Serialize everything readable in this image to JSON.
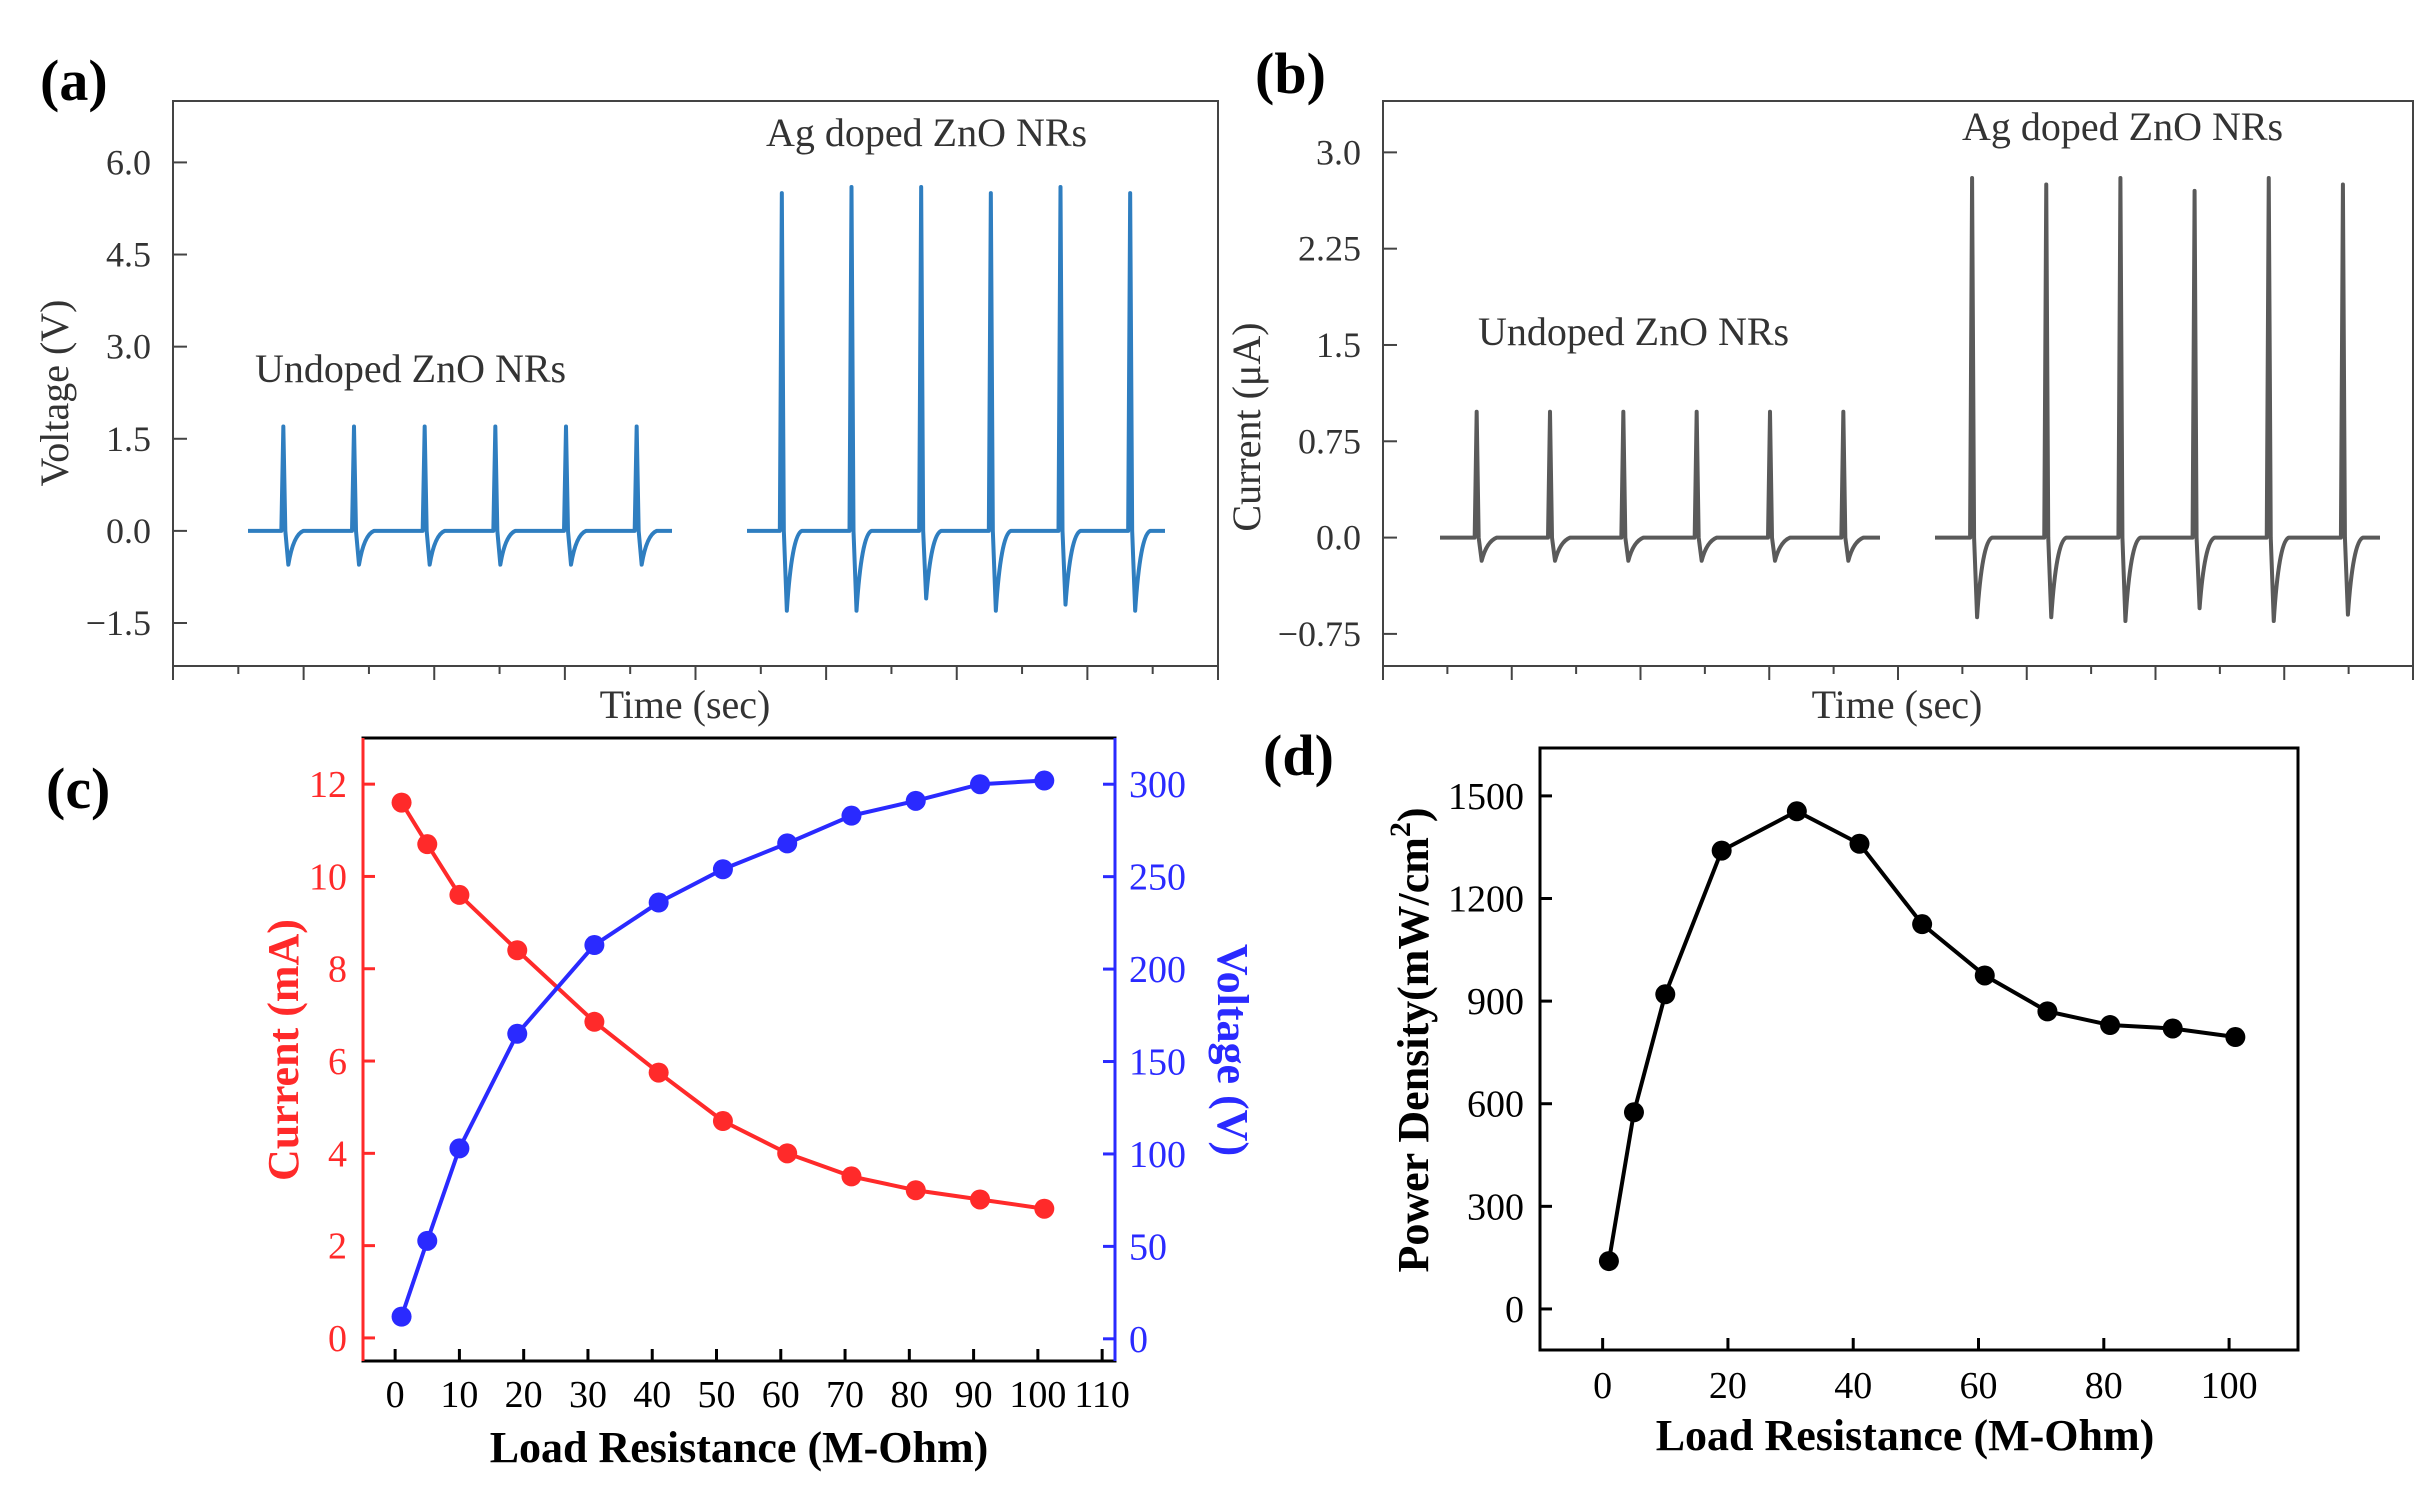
{
  "colors": {
    "panel_a_trace": "#2f7ec0",
    "panel_b_trace": "#5a5a5a",
    "current_series": "#ff2a2a",
    "voltage_series": "#2a2aff",
    "power_series": "#000000",
    "frame": "#444444"
  },
  "chart_data": [
    {
      "panel": "(a)",
      "type": "line",
      "xlabel": "Time (sec)",
      "ylabel": "Voltage (V)",
      "yticks": [
        "6.0",
        "4.5",
        "3.0",
        "1.5",
        "0.0",
        "−1.5"
      ],
      "ylim": [
        -2.2,
        7.0
      ],
      "x_tick_labels": "none",
      "annotations": [
        "Undoped ZnO NRs",
        "Ag doped ZnO NRs"
      ],
      "series": [
        {
          "peaks_positive": [
            1.7,
            1.7,
            1.7,
            1.7,
            1.7,
            1.7
          ],
          "peaks_negative": [
            -0.55,
            -0.55,
            -0.55,
            -0.55,
            -0.55,
            -0.55
          ]
        },
        {
          "peaks_positive": [
            5.5,
            5.6,
            5.6,
            5.5,
            5.6,
            5.5
          ],
          "peaks_negative": [
            -1.3,
            -1.3,
            -1.1,
            -1.3,
            -1.2,
            -1.3
          ]
        }
      ]
    },
    {
      "panel": "(b)",
      "type": "line",
      "xlabel": "Time (sec)",
      "ylabel": "Current (μA)",
      "yticks": [
        "3.0",
        "2.25",
        "1.5",
        "0.75",
        "0.0",
        "−0.75"
      ],
      "ylim": [
        -1.0,
        3.4
      ],
      "x_tick_labels": "none",
      "annotations": [
        "Undoped ZnO NRs",
        "Ag doped ZnO NRs"
      ],
      "series": [
        {
          "peaks_positive": [
            0.98,
            0.98,
            0.98,
            0.98,
            0.98,
            0.98
          ],
          "peaks_negative": [
            -0.18,
            -0.18,
            -0.18,
            -0.18,
            -0.18,
            -0.18
          ]
        },
        {
          "peaks_positive": [
            2.8,
            2.75,
            2.8,
            2.7,
            2.8,
            2.75
          ],
          "peaks_negative": [
            -0.62,
            -0.62,
            -0.65,
            -0.55,
            -0.65,
            -0.6
          ]
        }
      ]
    },
    {
      "panel": "(c)",
      "type": "line",
      "xlabel": "Load Resistance (M-Ohm)",
      "ylabel": "Current (mA)",
      "ylabel_right": "Voltage (V)",
      "xticks": [
        0,
        10,
        20,
        30,
        40,
        50,
        60,
        70,
        80,
        90,
        100,
        110
      ],
      "yticks_left": [
        0,
        2,
        4,
        6,
        8,
        10,
        12
      ],
      "yticks_right": [
        0,
        50,
        100,
        150,
        200,
        250,
        300
      ],
      "xlim": [
        -5,
        112
      ],
      "ylim": [
        -0.5,
        13.0
      ],
      "ylim_right": [
        -12,
        325
      ],
      "x": [
        1,
        5,
        10,
        19,
        31,
        41,
        51,
        61,
        71,
        81,
        91,
        101
      ],
      "series": [
        {
          "axis": "left",
          "values": [
            11.6,
            10.7,
            9.6,
            8.4,
            6.85,
            5.75,
            4.7,
            4.0,
            3.5,
            3.2,
            3.0,
            2.8
          ]
        },
        {
          "axis": "right",
          "values": [
            12,
            53,
            103,
            165,
            213,
            236,
            254,
            268,
            283,
            291,
            300,
            302
          ]
        }
      ]
    },
    {
      "panel": "(d)",
      "type": "line",
      "xlabel": "Load Resistance (M-Ohm)",
      "ylabel": "Power Density(mW/cm",
      "ylabel_sup": "2",
      "ylabel_end": ")",
      "xticks": [
        0,
        20,
        40,
        60,
        80,
        100
      ],
      "yticks": [
        0,
        300,
        600,
        900,
        1200,
        1500
      ],
      "xlim": [
        -10,
        111
      ],
      "ylim": [
        -120,
        1640
      ],
      "x": [
        1,
        5,
        10,
        19,
        31,
        41,
        51,
        61,
        71,
        81,
        91,
        101
      ],
      "series": [
        {
          "values": [
            140,
            575,
            920,
            1340,
            1455,
            1360,
            1125,
            975,
            870,
            830,
            820,
            795
          ]
        }
      ]
    }
  ]
}
